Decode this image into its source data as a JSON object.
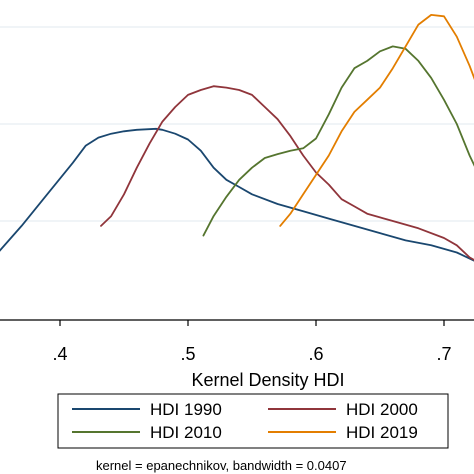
{
  "chart_data": {
    "type": "line",
    "title": "",
    "xlabel": "Kernel Density HDI",
    "ylabel": "",
    "xlim": [
      0.35,
      0.73
    ],
    "ylim": [
      0,
      6.3
    ],
    "grid": true,
    "x_ticks": [
      {
        "value": 0.4,
        "label": ".4"
      },
      {
        "value": 0.5,
        "label": ".5"
      },
      {
        "value": 0.6,
        "label": ".6"
      },
      {
        "value": 0.7,
        "label": ".7"
      }
    ],
    "y_grid": [
      2,
      4,
      6
    ],
    "legend_position": "bottom",
    "note": "kernel = epanechnikov, bandwidth = 0.0407",
    "series": [
      {
        "name": "HDI 1990",
        "color": "#1a476f",
        "points": [
          [
            0.35,
            1.3
          ],
          [
            0.37,
            1.9
          ],
          [
            0.39,
            2.55
          ],
          [
            0.41,
            3.2
          ],
          [
            0.42,
            3.55
          ],
          [
            0.43,
            3.72
          ],
          [
            0.44,
            3.8
          ],
          [
            0.45,
            3.85
          ],
          [
            0.46,
            3.88
          ],
          [
            0.475,
            3.9
          ],
          [
            0.48,
            3.88
          ],
          [
            0.49,
            3.8
          ],
          [
            0.5,
            3.68
          ],
          [
            0.51,
            3.45
          ],
          [
            0.52,
            3.1
          ],
          [
            0.53,
            2.85
          ],
          [
            0.54,
            2.7
          ],
          [
            0.55,
            2.55
          ],
          [
            0.57,
            2.35
          ],
          [
            0.59,
            2.2
          ],
          [
            0.61,
            2.05
          ],
          [
            0.63,
            1.9
          ],
          [
            0.65,
            1.75
          ],
          [
            0.67,
            1.6
          ],
          [
            0.69,
            1.5
          ],
          [
            0.71,
            1.35
          ],
          [
            0.73,
            1.1
          ]
        ]
      },
      {
        "name": "HDI 2000",
        "color": "#90353b",
        "points": [
          [
            0.432,
            1.9
          ],
          [
            0.44,
            2.1
          ],
          [
            0.45,
            2.55
          ],
          [
            0.46,
            3.1
          ],
          [
            0.47,
            3.6
          ],
          [
            0.48,
            4.05
          ],
          [
            0.49,
            4.35
          ],
          [
            0.5,
            4.6
          ],
          [
            0.51,
            4.7
          ],
          [
            0.52,
            4.78
          ],
          [
            0.53,
            4.75
          ],
          [
            0.54,
            4.7
          ],
          [
            0.55,
            4.6
          ],
          [
            0.56,
            4.35
          ],
          [
            0.57,
            4.1
          ],
          [
            0.58,
            3.75
          ],
          [
            0.59,
            3.35
          ],
          [
            0.6,
            3.0
          ],
          [
            0.61,
            2.75
          ],
          [
            0.62,
            2.45
          ],
          [
            0.63,
            2.3
          ],
          [
            0.64,
            2.15
          ],
          [
            0.66,
            2.0
          ],
          [
            0.68,
            1.85
          ],
          [
            0.7,
            1.65
          ],
          [
            0.71,
            1.5
          ],
          [
            0.72,
            1.25
          ],
          [
            0.73,
            1.1
          ]
        ]
      },
      {
        "name": "HDI 2010",
        "color": "#55752f",
        "points": [
          [
            0.512,
            1.7
          ],
          [
            0.52,
            2.1
          ],
          [
            0.53,
            2.5
          ],
          [
            0.54,
            2.85
          ],
          [
            0.55,
            3.1
          ],
          [
            0.56,
            3.3
          ],
          [
            0.57,
            3.38
          ],
          [
            0.58,
            3.45
          ],
          [
            0.59,
            3.5
          ],
          [
            0.6,
            3.7
          ],
          [
            0.61,
            4.2
          ],
          [
            0.62,
            4.75
          ],
          [
            0.63,
            5.15
          ],
          [
            0.64,
            5.3
          ],
          [
            0.65,
            5.5
          ],
          [
            0.66,
            5.6
          ],
          [
            0.67,
            5.55
          ],
          [
            0.68,
            5.3
          ],
          [
            0.69,
            4.95
          ],
          [
            0.7,
            4.5
          ],
          [
            0.71,
            4.0
          ],
          [
            0.72,
            3.35
          ],
          [
            0.73,
            2.8
          ]
        ]
      },
      {
        "name": "HDI 2019",
        "color": "#e37e00",
        "points": [
          [
            0.572,
            1.9
          ],
          [
            0.58,
            2.15
          ],
          [
            0.59,
            2.55
          ],
          [
            0.6,
            2.95
          ],
          [
            0.61,
            3.35
          ],
          [
            0.62,
            3.85
          ],
          [
            0.63,
            4.25
          ],
          [
            0.64,
            4.5
          ],
          [
            0.65,
            4.75
          ],
          [
            0.66,
            5.15
          ],
          [
            0.67,
            5.6
          ],
          [
            0.68,
            6.05
          ],
          [
            0.69,
            6.25
          ],
          [
            0.7,
            6.22
          ],
          [
            0.71,
            5.8
          ],
          [
            0.72,
            5.2
          ],
          [
            0.73,
            4.5
          ]
        ]
      }
    ]
  }
}
